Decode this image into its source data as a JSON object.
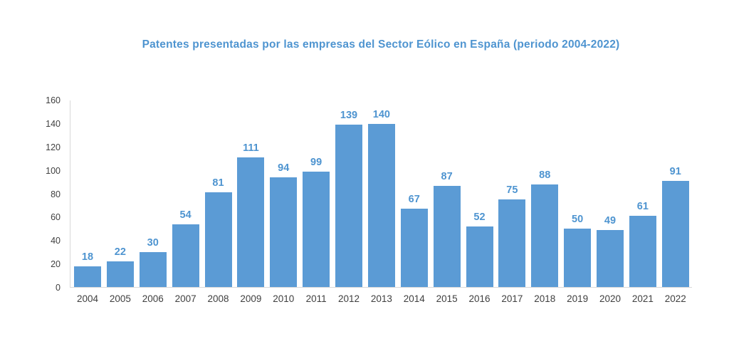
{
  "chart_data": {
    "type": "bar",
    "title": "Patentes presentadas por las empresas del Sector Eólico en España (periodo 2004-2022)",
    "categories": [
      "2004",
      "2005",
      "2006",
      "2007",
      "2008",
      "2009",
      "2010",
      "2011",
      "2012",
      "2013",
      "2014",
      "2015",
      "2016",
      "2017",
      "2018",
      "2019",
      "2020",
      "2021",
      "2022"
    ],
    "values": [
      18,
      22,
      30,
      54,
      81,
      111,
      94,
      99,
      139,
      140,
      67,
      87,
      52,
      75,
      88,
      50,
      49,
      61,
      91
    ],
    "xlabel": "",
    "ylabel": "",
    "ylim": [
      0,
      160
    ],
    "yticks": [
      0,
      20,
      40,
      60,
      80,
      100,
      120,
      140,
      160
    ],
    "grid": false,
    "legend": false,
    "colors": {
      "bar": "#5B9BD5",
      "value_label": "#4E94D0",
      "title": "#4E94D0",
      "axis_text": "#3F3F3F",
      "axis_line": "#D9D9D9",
      "background": "#FFFFFF"
    }
  }
}
